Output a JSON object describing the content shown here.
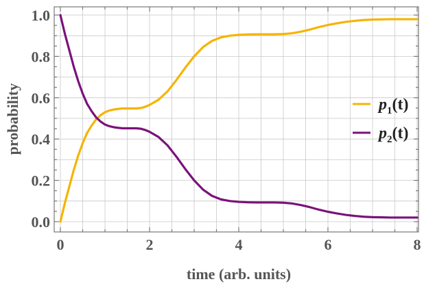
{
  "chart_data": {
    "type": "line",
    "xlabel": "time (arb. units)",
    "ylabel": "probability",
    "xlim": [
      0,
      8
    ],
    "ylim": [
      0,
      1
    ],
    "xticks": [
      "0",
      "2",
      "4",
      "6",
      "8"
    ],
    "yticks": [
      "0.0",
      "0.2",
      "0.4",
      "0.6",
      "0.8",
      "1.0"
    ],
    "grid": true,
    "legend_position": "right",
    "series": [
      {
        "name": "p1(t)",
        "legend_main": "p",
        "legend_sub": "1",
        "legend_tail": "(t)",
        "color": "#f5b400",
        "x": [
          0,
          0.1,
          0.2,
          0.3,
          0.4,
          0.5,
          0.6,
          0.7,
          0.8,
          0.9,
          1.0,
          1.1,
          1.2,
          1.3,
          1.4,
          1.5,
          1.6,
          1.7,
          1.8,
          1.9,
          2.0,
          2.2,
          2.4,
          2.6,
          2.8,
          3.0,
          3.2,
          3.4,
          3.6,
          3.8,
          4.0,
          4.2,
          4.4,
          4.6,
          4.8,
          5.0,
          5.2,
          5.4,
          5.6,
          5.8,
          6.0,
          6.2,
          6.4,
          6.6,
          6.8,
          7.0,
          7.2,
          7.4,
          7.6,
          7.8,
          8.0
        ],
        "y": [
          0.0,
          0.09,
          0.17,
          0.25,
          0.32,
          0.38,
          0.43,
          0.465,
          0.495,
          0.515,
          0.53,
          0.538,
          0.543,
          0.546,
          0.548,
          0.548,
          0.548,
          0.548,
          0.55,
          0.556,
          0.565,
          0.59,
          0.63,
          0.685,
          0.745,
          0.8,
          0.845,
          0.875,
          0.892,
          0.9,
          0.904,
          0.906,
          0.907,
          0.907,
          0.907,
          0.908,
          0.912,
          0.92,
          0.93,
          0.942,
          0.952,
          0.96,
          0.967,
          0.972,
          0.976,
          0.978,
          0.979,
          0.98,
          0.98,
          0.98,
          0.98
        ]
      },
      {
        "name": "p2(t)",
        "legend_main": "p",
        "legend_sub": "2",
        "legend_tail": "(t)",
        "color": "#7a127a",
        "x": [
          0,
          0.1,
          0.2,
          0.3,
          0.4,
          0.5,
          0.6,
          0.7,
          0.8,
          0.9,
          1.0,
          1.1,
          1.2,
          1.3,
          1.4,
          1.5,
          1.6,
          1.7,
          1.8,
          1.9,
          2.0,
          2.2,
          2.4,
          2.6,
          2.8,
          3.0,
          3.2,
          3.4,
          3.6,
          3.8,
          4.0,
          4.2,
          4.4,
          4.6,
          4.8,
          5.0,
          5.2,
          5.4,
          5.6,
          5.8,
          6.0,
          6.2,
          6.4,
          6.6,
          6.8,
          7.0,
          7.2,
          7.4,
          7.6,
          7.8,
          8.0
        ],
        "y": [
          1.0,
          0.91,
          0.83,
          0.75,
          0.68,
          0.62,
          0.57,
          0.535,
          0.505,
          0.485,
          0.47,
          0.462,
          0.457,
          0.454,
          0.452,
          0.452,
          0.452,
          0.452,
          0.45,
          0.444,
          0.435,
          0.41,
          0.37,
          0.315,
          0.255,
          0.2,
          0.155,
          0.125,
          0.108,
          0.1,
          0.096,
          0.094,
          0.093,
          0.093,
          0.093,
          0.092,
          0.088,
          0.08,
          0.07,
          0.058,
          0.048,
          0.04,
          0.033,
          0.028,
          0.024,
          0.022,
          0.021,
          0.02,
          0.02,
          0.02,
          0.02
        ]
      }
    ]
  }
}
